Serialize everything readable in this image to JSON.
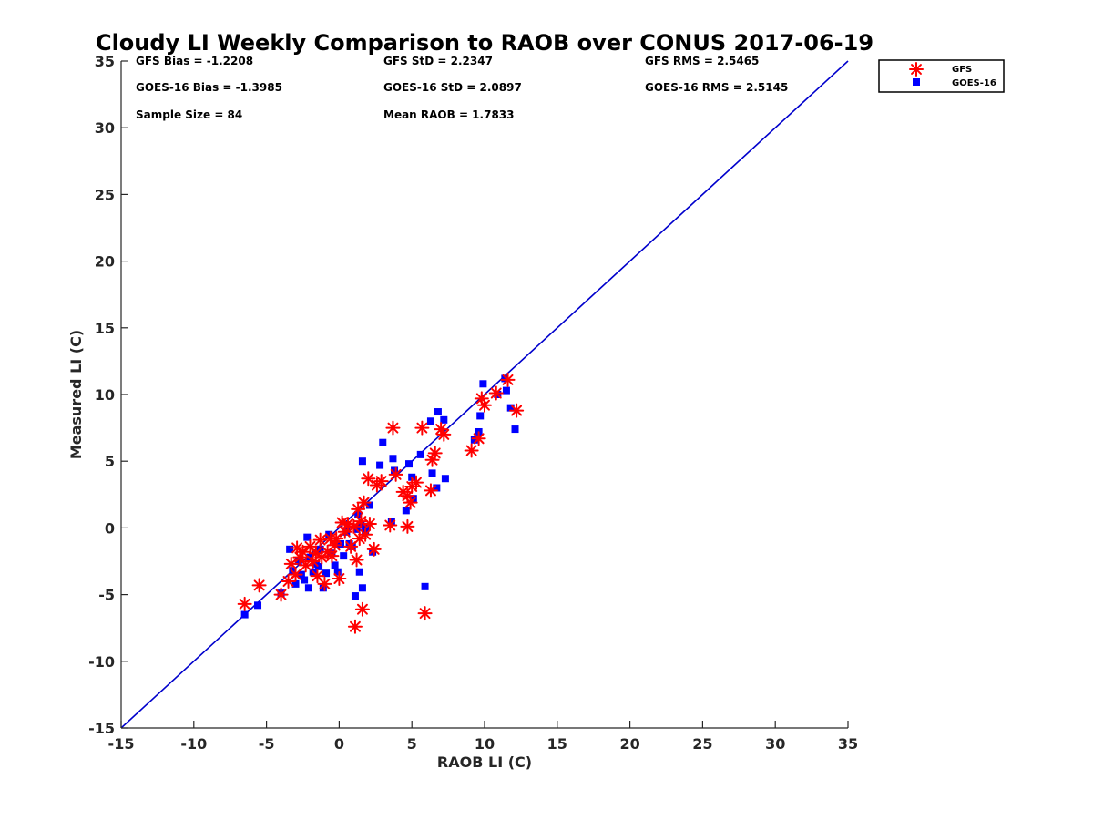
{
  "chart_data": {
    "type": "scatter",
    "title": "Cloudy LI Weekly Comparison to RAOB over CONUS 2017-06-19",
    "xlabel": "RAOB LI (C)",
    "ylabel": "Measured LI (C)",
    "xlim": [
      -15,
      35
    ],
    "ylim": [
      -15,
      35
    ],
    "xticks": [
      -15,
      -10,
      -5,
      0,
      5,
      10,
      15,
      20,
      25,
      30,
      35
    ],
    "yticks": [
      -15,
      -10,
      -5,
      0,
      5,
      10,
      15,
      20,
      25,
      30,
      35
    ],
    "grid": false,
    "legend_position": "outside-top-right",
    "reference_line": {
      "from": [
        -15,
        -15
      ],
      "to": [
        35,
        35
      ],
      "color": "#0000cc"
    },
    "stats": [
      "GFS Bias = -1.2208",
      "GFS StD = 2.2347",
      "GFS RMS = 2.5465",
      "GOES-16 Bias = -1.3985",
      "GOES-16 StD = 2.0897",
      "GOES-16 RMS = 2.5145",
      "Sample Size = 84",
      "Mean RAOB = 1.7833"
    ],
    "series": [
      {
        "name": "GFS",
        "marker": "asterisk",
        "color": "#ff0000",
        "points": [
          [
            -6.5,
            -5.7
          ],
          [
            -5.5,
            -4.3
          ],
          [
            -4,
            -5
          ],
          [
            -3.5,
            -4
          ],
          [
            -3.3,
            -2.7
          ],
          [
            -3,
            -3.5
          ],
          [
            -2.9,
            -1.5
          ],
          [
            -2.7,
            -2.2
          ],
          [
            -2.5,
            -1.8
          ],
          [
            -2.3,
            -2.8
          ],
          [
            -2,
            -1.4
          ],
          [
            -1.8,
            -2.5
          ],
          [
            -1.6,
            -1.9
          ],
          [
            -1.5,
            -3.6
          ],
          [
            -1.3,
            -0.9
          ],
          [
            -1.2,
            -2.2
          ],
          [
            -1,
            -4.2
          ],
          [
            -0.8,
            -1.8
          ],
          [
            -0.6,
            -0.8
          ],
          [
            -0.5,
            -2.1
          ],
          [
            -0.3,
            -1.3
          ],
          [
            -0.2,
            -0.8
          ],
          [
            0,
            -3.8
          ],
          [
            0.2,
            0.4
          ],
          [
            0.4,
            -0.3
          ],
          [
            0.6,
            0.3
          ],
          [
            0.8,
            -1.4
          ],
          [
            1,
            0.1
          ],
          [
            1.2,
            -2.4
          ],
          [
            1.3,
            1.4
          ],
          [
            1.4,
            -0.8
          ],
          [
            1.5,
            0.5
          ],
          [
            1.6,
            -6.1
          ],
          [
            1.7,
            1.9
          ],
          [
            1.8,
            -0.5
          ],
          [
            2,
            3.7
          ],
          [
            2.1,
            0.3
          ],
          [
            2.4,
            -1.6
          ],
          [
            2.6,
            3.2
          ],
          [
            2.9,
            3.5
          ],
          [
            1.1,
            -7.4
          ],
          [
            3.5,
            0.2
          ],
          [
            3.7,
            7.5
          ],
          [
            3.9,
            4
          ],
          [
            4.4,
            2.7
          ],
          [
            4.7,
            2.4
          ],
          [
            4.9,
            1.9
          ],
          [
            5,
            3.1
          ],
          [
            5.3,
            3.4
          ],
          [
            4.7,
            0.1
          ],
          [
            5.7,
            7.5
          ],
          [
            5.9,
            -6.4
          ],
          [
            6.3,
            2.8
          ],
          [
            6.4,
            5.1
          ],
          [
            6.6,
            5.6
          ],
          [
            7,
            7.4
          ],
          [
            7.2,
            7
          ],
          [
            9.1,
            5.8
          ],
          [
            9.6,
            6.7
          ],
          [
            9.8,
            9.7
          ],
          [
            10,
            9.2
          ],
          [
            10.8,
            10.1
          ],
          [
            11.6,
            11.1
          ],
          [
            12.2,
            8.8
          ]
        ]
      },
      {
        "name": "GOES-16",
        "marker": "square",
        "color": "#0000ff",
        "points": [
          [
            -6.5,
            -6.5
          ],
          [
            -5.6,
            -5.8
          ],
          [
            -4,
            -4.9
          ],
          [
            -3.4,
            -1.6
          ],
          [
            -3.2,
            -3.2
          ],
          [
            -3,
            -4.2
          ],
          [
            -2.8,
            -2.5
          ],
          [
            -2.6,
            -3.5
          ],
          [
            -2.4,
            -3.9
          ],
          [
            -2.2,
            -0.7
          ],
          [
            -2.1,
            -4.5
          ],
          [
            -2,
            -2.2
          ],
          [
            -1.8,
            -3.3
          ],
          [
            -1.6,
            -2.7
          ],
          [
            -1.4,
            -2.9
          ],
          [
            -1.3,
            -1.6
          ],
          [
            -1.1,
            -4.5
          ],
          [
            -0.9,
            -3.4
          ],
          [
            -0.7,
            -0.5
          ],
          [
            -0.5,
            -1.9
          ],
          [
            -0.3,
            -2.8
          ],
          [
            -0.1,
            -3.3
          ],
          [
            0.1,
            -1.2
          ],
          [
            0.3,
            -2.1
          ],
          [
            0.5,
            -0.3
          ],
          [
            0.7,
            -1.2
          ],
          [
            0.9,
            -1.4
          ],
          [
            1.1,
            -5.1
          ],
          [
            1.2,
            -0.1
          ],
          [
            1.3,
            1
          ],
          [
            1.4,
            -3.3
          ],
          [
            1.5,
            0.2
          ],
          [
            1.6,
            -4.5
          ],
          [
            1.8,
            -0.2
          ],
          [
            1.9,
            0.1
          ],
          [
            2.1,
            1.7
          ],
          [
            2.3,
            -1.8
          ],
          [
            2.8,
            4.7
          ],
          [
            3,
            6.4
          ],
          [
            3.6,
            0.5
          ],
          [
            3.7,
            5.2
          ],
          [
            3.8,
            4.3
          ],
          [
            4.6,
            1.3
          ],
          [
            4.8,
            4.8
          ],
          [
            5,
            3.8
          ],
          [
            5.1,
            2.2
          ],
          [
            5.6,
            5.5
          ],
          [
            5.9,
            -4.4
          ],
          [
            6.3,
            8
          ],
          [
            6.4,
            4.1
          ],
          [
            6.7,
            3
          ],
          [
            6.8,
            8.7
          ],
          [
            7.2,
            8.1
          ],
          [
            7.3,
            3.7
          ],
          [
            9.3,
            6.6
          ],
          [
            9.6,
            7.2
          ],
          [
            9.7,
            8.4
          ],
          [
            9.9,
            10.8
          ],
          [
            10.9,
            10
          ],
          [
            11.5,
            10.3
          ],
          [
            11.8,
            9
          ],
          [
            11.4,
            11.2
          ],
          [
            12.1,
            7.4
          ],
          [
            1.6,
            5
          ]
        ]
      }
    ]
  }
}
